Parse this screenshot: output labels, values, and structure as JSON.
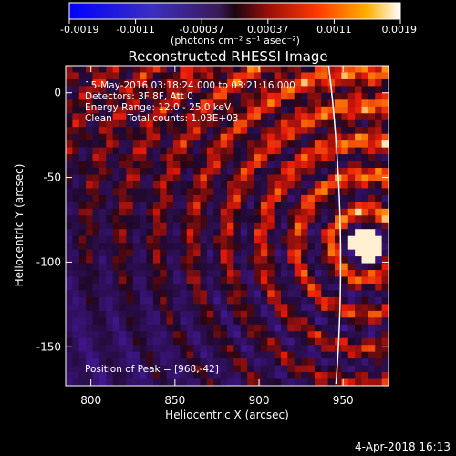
{
  "chart_data": {
    "type": "heatmap",
    "title": "Reconstructed RHESSI Image",
    "xlabel": "Heliocentric X (arcsec)",
    "ylabel": "Heliocentric Y (arcsec)",
    "xlim": [
      785,
      977
    ],
    "ylim": [
      -173,
      16
    ],
    "x_ticks": [
      800,
      850,
      900,
      950
    ],
    "y_ticks": [
      0,
      -50,
      -100,
      -150
    ],
    "colorbar": {
      "range": [
        -0.0019,
        0.0019
      ],
      "tick_labels": [
        "-0.0019",
        "-0.0011",
        "-0.00037",
        "0.00037",
        "0.0011",
        "0.0019"
      ],
      "unit_label": "(photons cm⁻² s⁻¹ asec⁻²)"
    },
    "annotations": [
      "15-May-2016 03:18:24.000 to 03:21:16.000",
      "Detectors: 3F 8F, Att 0",
      "Energy Range: 12.0 - 25.0 keV",
      "Clean     Total counts: 1.03E+03"
    ],
    "peak_label": "Position of Peak = [968,-42]",
    "peak": {
      "x": 968,
      "y": -42
    },
    "limb_visible": true,
    "image_grid": {
      "nx": 48,
      "ny": 47
    }
  },
  "footer": {
    "date": "4-Apr-2018 16:13"
  },
  "colors": {
    "background": "#000000",
    "limb": "#ffffff",
    "text": "#ffffff"
  }
}
